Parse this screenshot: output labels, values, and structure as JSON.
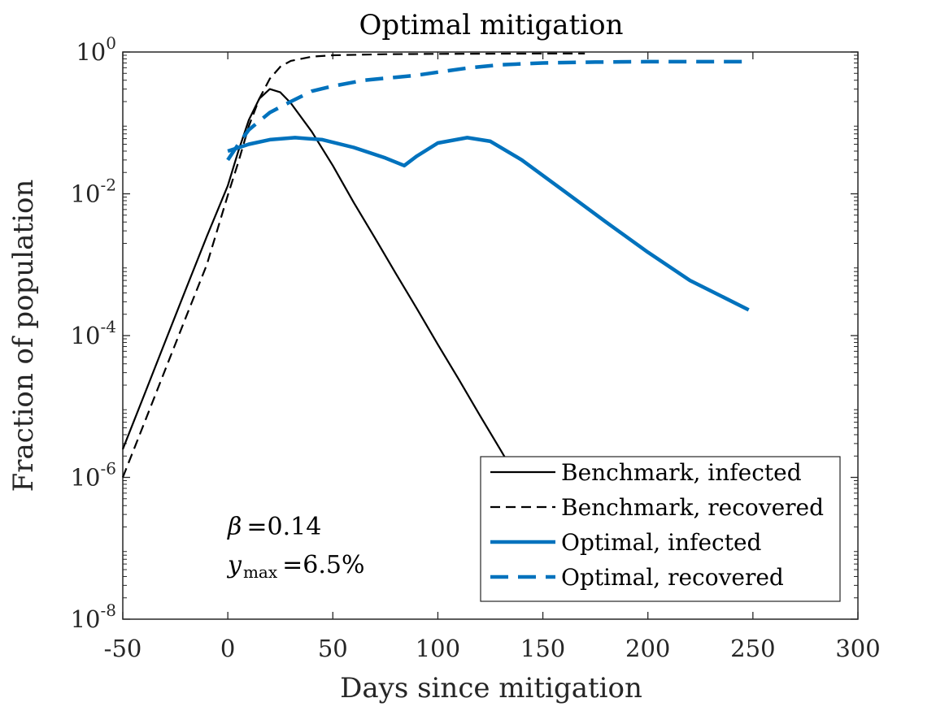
{
  "chart_data": {
    "type": "line",
    "title": "Optimal mitigation",
    "xlabel": "Days since mitigation",
    "ylabel": "Fraction of population",
    "xlim": [
      -50,
      300
    ],
    "ylim": [
      1e-08,
      1
    ],
    "yscale": "log",
    "grid": false,
    "legend_position": "bottom-right",
    "x_ticks": [
      -50,
      0,
      50,
      100,
      150,
      200,
      250,
      300
    ],
    "x_tick_labels": [
      "-50",
      "0",
      "50",
      "100",
      "150",
      "200",
      "250",
      "300"
    ],
    "y_ticks": [
      {
        "value": 1,
        "mantissa": "10",
        "exponent": "0"
      },
      {
        "value": 0.01,
        "mantissa": "10",
        "exponent": "-2"
      },
      {
        "value": 0.0001,
        "mantissa": "10",
        "exponent": "-4"
      },
      {
        "value": 1e-06,
        "mantissa": "10",
        "exponent": "-6"
      },
      {
        "value": 1e-08,
        "mantissa": "10",
        "exponent": "-8"
      }
    ],
    "series": [
      {
        "name": "Benchmark, infected",
        "color": "#000000",
        "style": "solid",
        "points": [
          [
            -50,
            2.5e-06
          ],
          [
            -40,
            1.4e-05
          ],
          [
            -30,
            8e-05
          ],
          [
            -20,
            0.00045
          ],
          [
            -10,
            0.0025
          ],
          [
            0,
            0.013
          ],
          [
            5,
            0.04
          ],
          [
            10,
            0.11
          ],
          [
            15,
            0.22
          ],
          [
            20,
            0.3
          ],
          [
            25,
            0.27
          ],
          [
            30,
            0.19
          ],
          [
            40,
            0.075
          ],
          [
            50,
            0.025
          ],
          [
            60,
            0.0075
          ],
          [
            70,
            0.0024
          ],
          [
            80,
            0.00075
          ],
          [
            90,
            0.00024
          ],
          [
            100,
            7.5e-05
          ],
          [
            110,
            2.4e-05
          ],
          [
            120,
            7.5e-06
          ],
          [
            130,
            2.4e-06
          ],
          [
            140,
            7.5e-07
          ],
          [
            150,
            2.4e-07
          ],
          [
            160,
            7.5e-08
          ],
          [
            170,
            2.4e-08
          ]
        ]
      },
      {
        "name": "Benchmark, recovered",
        "color": "#000000",
        "style": "dashed",
        "points": [
          [
            -50,
            1e-06
          ],
          [
            -40,
            5.6e-06
          ],
          [
            -30,
            3.2e-05
          ],
          [
            -20,
            0.00018
          ],
          [
            -10,
            0.001
          ],
          [
            0,
            0.0095
          ],
          [
            5,
            0.028
          ],
          [
            10,
            0.09
          ],
          [
            15,
            0.22
          ],
          [
            20,
            0.42
          ],
          [
            25,
            0.62
          ],
          [
            30,
            0.75
          ],
          [
            40,
            0.86
          ],
          [
            50,
            0.9
          ],
          [
            75,
            0.93
          ],
          [
            100,
            0.94
          ],
          [
            150,
            0.95
          ],
          [
            170,
            0.95
          ]
        ]
      },
      {
        "name": "Optimal, infected",
        "color": "#0072BD",
        "style": "solid",
        "points": [
          [
            0,
            0.04
          ],
          [
            10,
            0.05
          ],
          [
            20,
            0.058
          ],
          [
            32,
            0.062
          ],
          [
            45,
            0.058
          ],
          [
            60,
            0.045
          ],
          [
            75,
            0.032
          ],
          [
            84,
            0.025
          ],
          [
            90,
            0.034
          ],
          [
            100,
            0.052
          ],
          [
            114,
            0.062
          ],
          [
            125,
            0.055
          ],
          [
            140,
            0.03
          ],
          [
            160,
            0.011
          ],
          [
            180,
            0.004
          ],
          [
            200,
            0.0015
          ],
          [
            220,
            0.0006
          ],
          [
            235,
            0.00036
          ],
          [
            248,
            0.00023
          ]
        ]
      },
      {
        "name": "Optimal, recovered",
        "color": "#0072BD",
        "style": "dashed",
        "points": [
          [
            0,
            0.03
          ],
          [
            5,
            0.05
          ],
          [
            10,
            0.08
          ],
          [
            20,
            0.14
          ],
          [
            30,
            0.2
          ],
          [
            40,
            0.28
          ],
          [
            50,
            0.33
          ],
          [
            65,
            0.4
          ],
          [
            80,
            0.44
          ],
          [
            90,
            0.47
          ],
          [
            100,
            0.52
          ],
          [
            115,
            0.6
          ],
          [
            130,
            0.66
          ],
          [
            150,
            0.7
          ],
          [
            175,
            0.72
          ],
          [
            200,
            0.73
          ],
          [
            248,
            0.73
          ]
        ]
      }
    ],
    "annotations": {
      "beta_symbol": "β",
      "beta_value": "=0.14",
      "ymax_symbol": "y",
      "ymax_subscript": "max",
      "ymax_value": "=6.5%"
    }
  }
}
